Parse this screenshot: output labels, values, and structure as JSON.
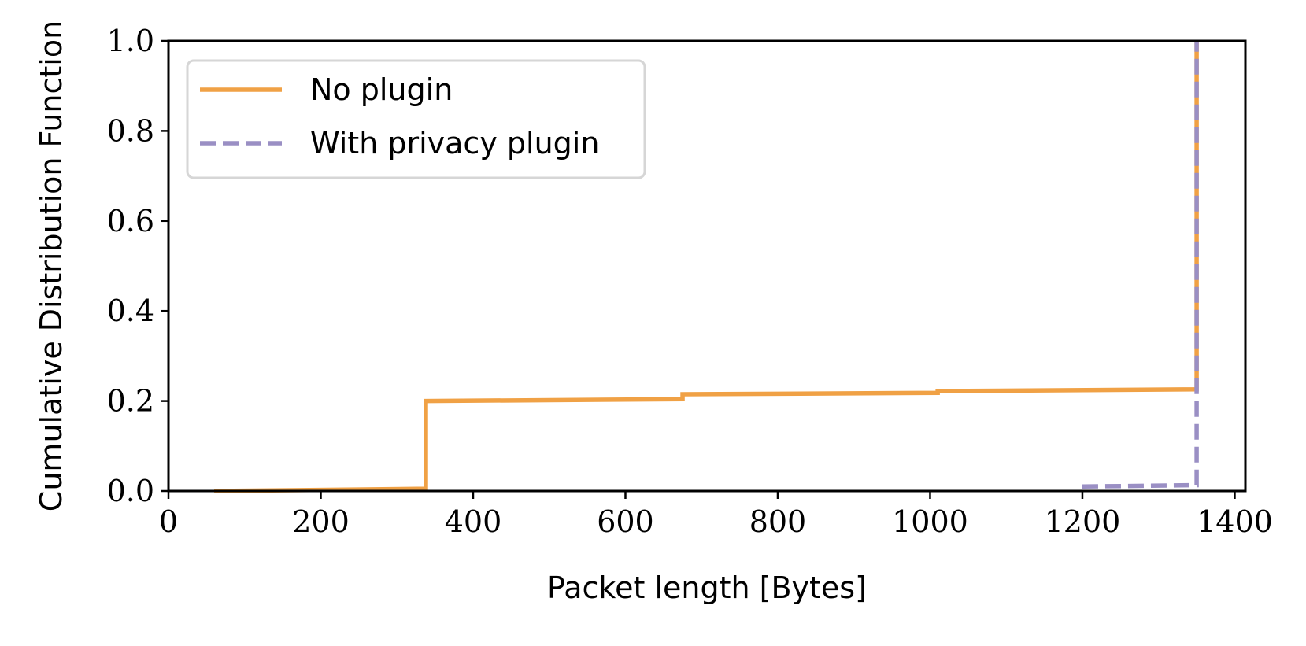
{
  "chart_data": {
    "type": "line",
    "xlabel": "Packet length [Bytes]",
    "ylabel": "Cumulative Distribution Function",
    "xlim": [
      0,
      1414
    ],
    "ylim": [
      0,
      1.0
    ],
    "xticks": [
      0,
      200,
      400,
      600,
      800,
      1000,
      1200,
      1400
    ],
    "yticks": [
      {
        "value": 0,
        "label": "0.0"
      },
      {
        "value": 0.2,
        "label": "0.2"
      },
      {
        "value": 0.4,
        "label": "0.4"
      },
      {
        "value": 0.6,
        "label": "0.6"
      },
      {
        "value": 0.8,
        "label": "0.8"
      },
      {
        "value": 1.0,
        "label": "1.0"
      }
    ],
    "legend": "upper left",
    "series": [
      {
        "name": "No plugin",
        "color": "#f0a145",
        "dash": "solid",
        "x": [
          60,
          338,
          338,
          675,
          675,
          1010,
          1010,
          1350,
          1350
        ],
        "values": [
          0,
          0.005,
          0.2,
          0.204,
          0.215,
          0.218,
          0.222,
          0.226,
          1.0
        ]
      },
      {
        "name": "With privacy plugin",
        "color": "#9a8fc4",
        "dash": "dashed",
        "x": [
          1200,
          1350,
          1350
        ],
        "values": [
          0.01,
          0.013,
          1.0
        ]
      }
    ]
  }
}
